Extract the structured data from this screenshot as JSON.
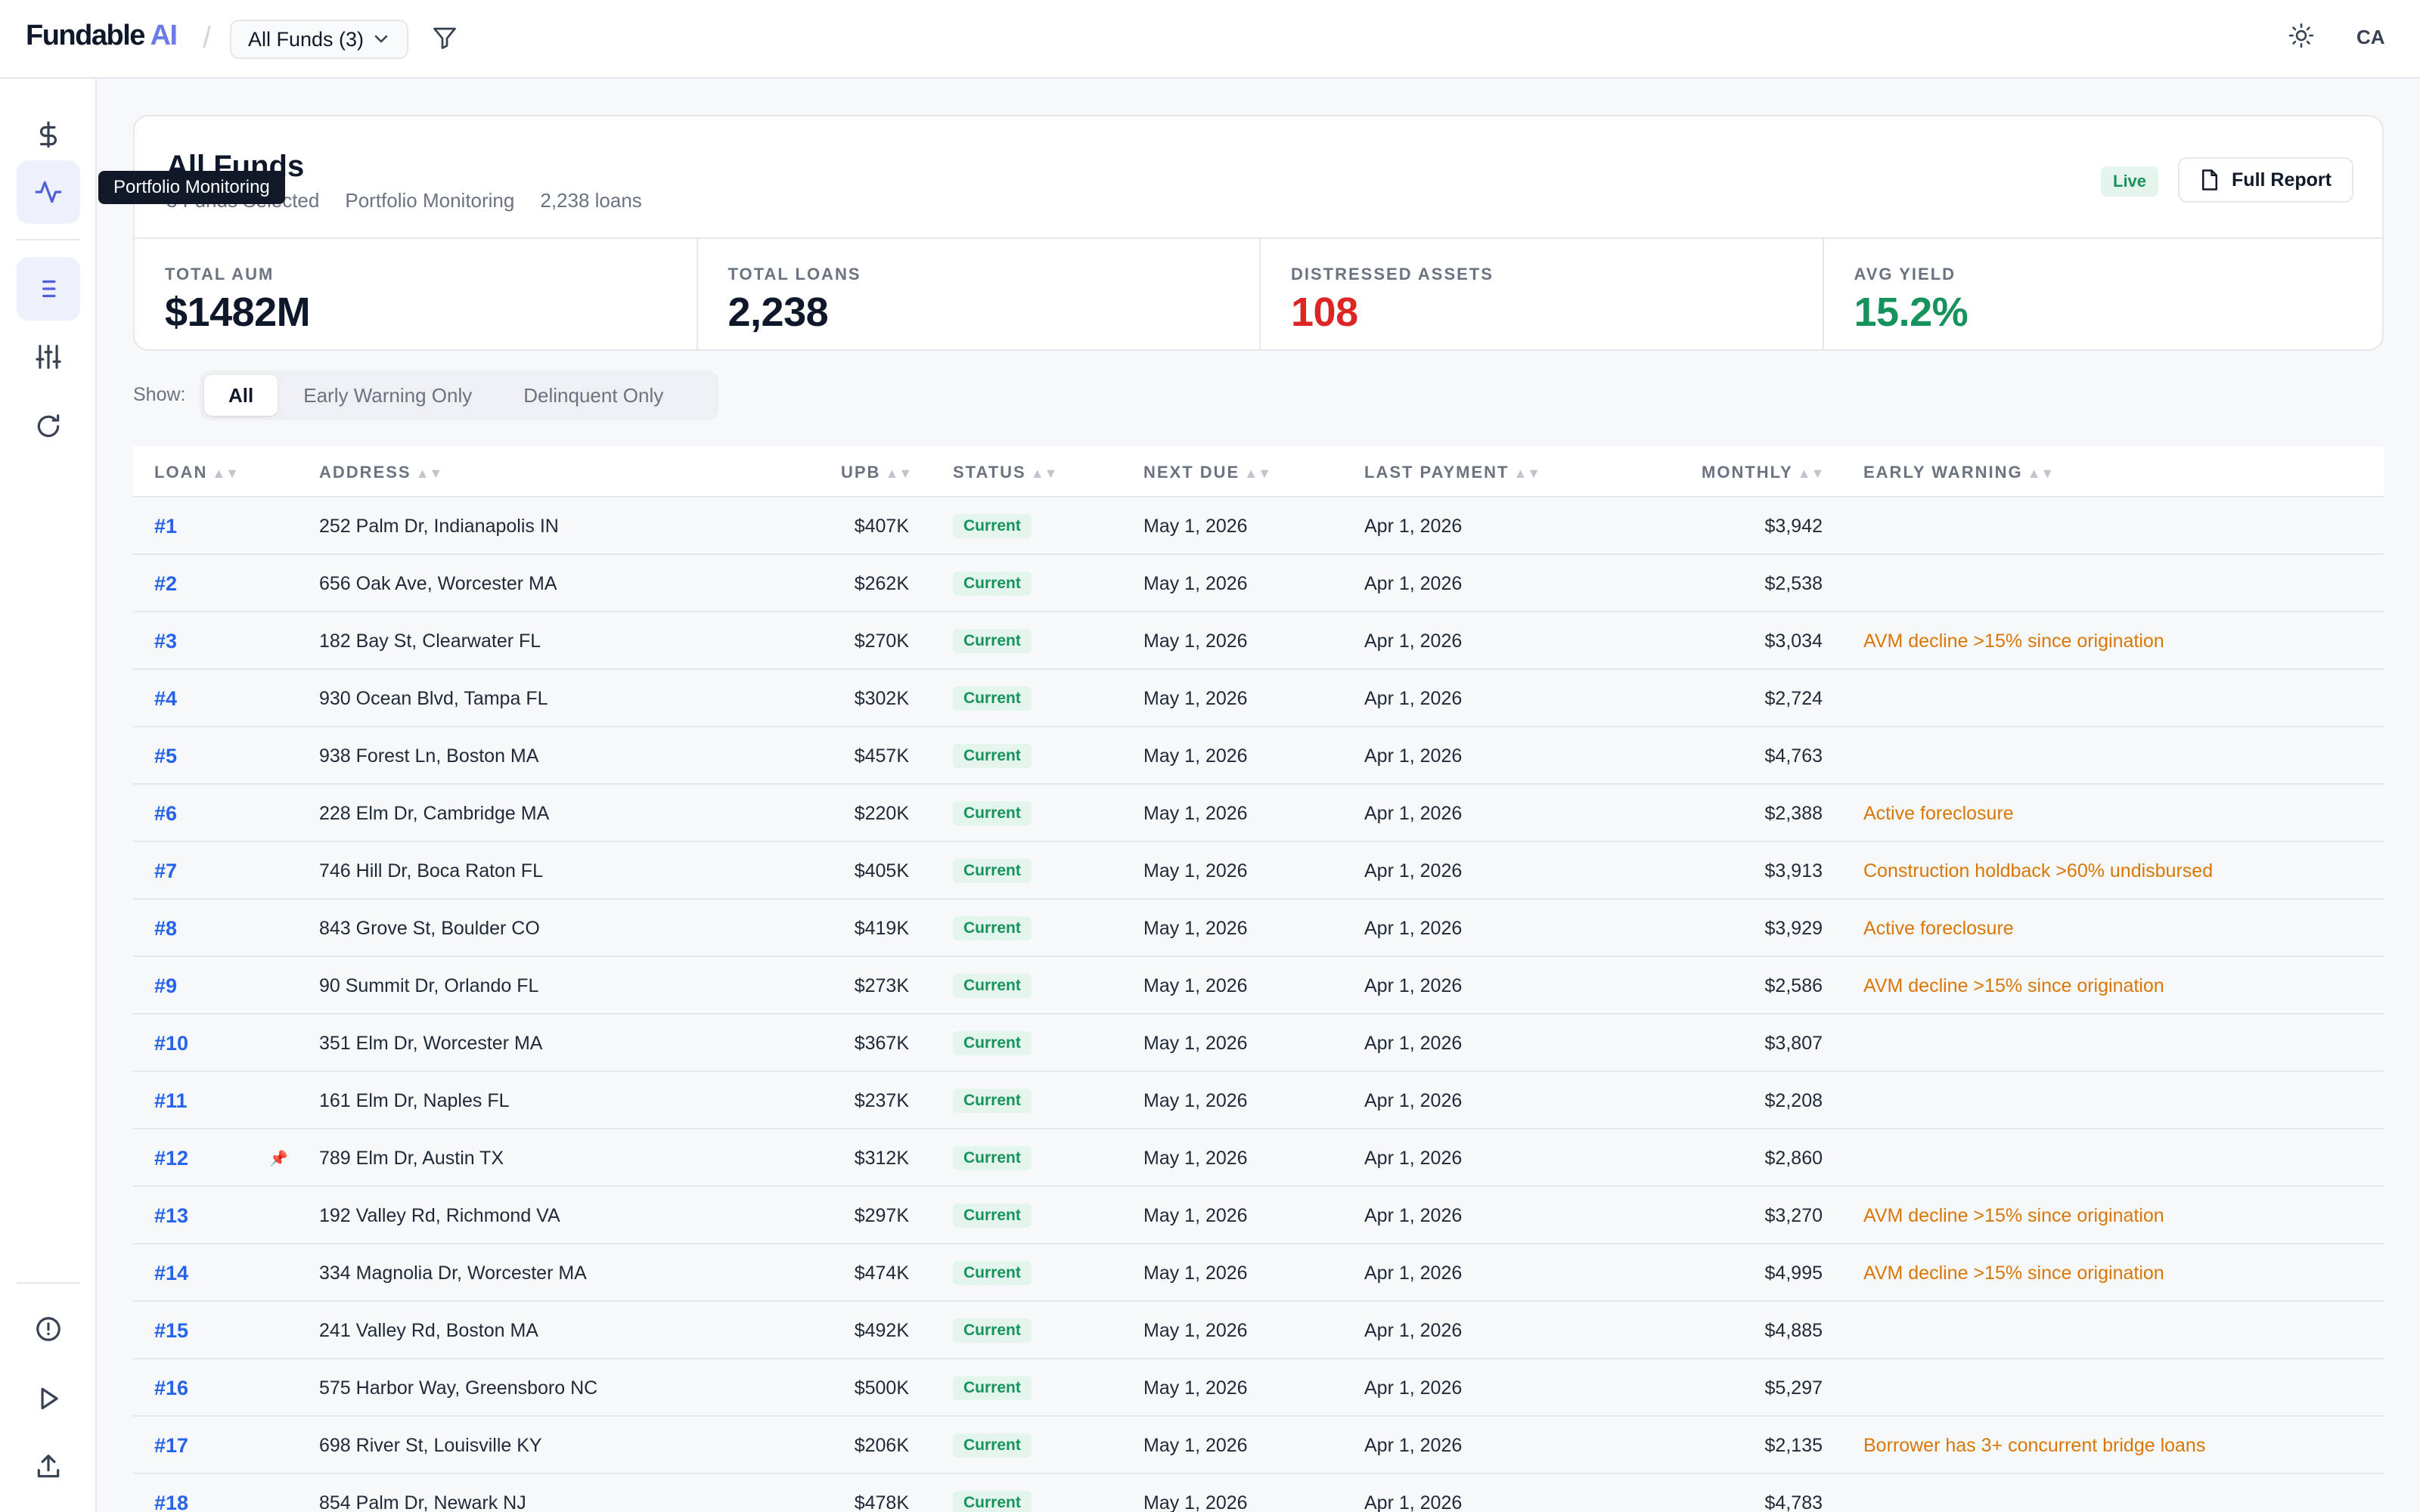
{
  "app": {
    "brand_main": "Fundable",
    "brand_ai": "AI",
    "brand_sep": "/"
  },
  "header": {
    "fund_select": "All Funds (3)",
    "user_initials": "CA"
  },
  "sidebar": {
    "tooltip": "Portfolio Monitoring"
  },
  "summary": {
    "title": "All Funds",
    "subtitle_items": [
      "3 Funds Selected",
      "Portfolio Monitoring",
      "2,238 loans"
    ],
    "live_badge": "Live",
    "report_button": "Full Report",
    "kpis": [
      {
        "label": "Total AUM",
        "value": "$1482M",
        "tone": "default"
      },
      {
        "label": "Total Loans",
        "value": "2,238",
        "tone": "default"
      },
      {
        "label": "Distressed Assets",
        "value": "108",
        "tone": "red"
      },
      {
        "label": "Avg Yield",
        "value": "15.2%",
        "tone": "green"
      }
    ]
  },
  "filters": {
    "show_label": "Show:",
    "options": [
      "All",
      "Early Warning Only",
      "Delinquent Only"
    ],
    "selected": "All"
  },
  "table": {
    "columns": [
      "Loan",
      "Address",
      "UPB",
      "Status",
      "Next Due",
      "Last Payment",
      "Monthly",
      "Early Warning"
    ],
    "sort_glyph": "▲▼",
    "pin_glyph": "📌",
    "rows": [
      {
        "loan": "#1",
        "pinned": false,
        "address": "252 Palm Dr, Indianapolis IN",
        "upb": "$407K",
        "status": "Current",
        "next_due": "May 1, 2026",
        "last_payment": "Apr 1, 2026",
        "monthly": "$3,942",
        "warning": ""
      },
      {
        "loan": "#2",
        "pinned": false,
        "address": "656 Oak Ave, Worcester MA",
        "upb": "$262K",
        "status": "Current",
        "next_due": "May 1, 2026",
        "last_payment": "Apr 1, 2026",
        "monthly": "$2,538",
        "warning": ""
      },
      {
        "loan": "#3",
        "pinned": false,
        "address": "182 Bay St, Clearwater FL",
        "upb": "$270K",
        "status": "Current",
        "next_due": "May 1, 2026",
        "last_payment": "Apr 1, 2026",
        "monthly": "$3,034",
        "warning": "AVM decline >15% since origination"
      },
      {
        "loan": "#4",
        "pinned": false,
        "address": "930 Ocean Blvd, Tampa FL",
        "upb": "$302K",
        "status": "Current",
        "next_due": "May 1, 2026",
        "last_payment": "Apr 1, 2026",
        "monthly": "$2,724",
        "warning": ""
      },
      {
        "loan": "#5",
        "pinned": false,
        "address": "938 Forest Ln, Boston MA",
        "upb": "$457K",
        "status": "Current",
        "next_due": "May 1, 2026",
        "last_payment": "Apr 1, 2026",
        "monthly": "$4,763",
        "warning": ""
      },
      {
        "loan": "#6",
        "pinned": false,
        "address": "228 Elm Dr, Cambridge MA",
        "upb": "$220K",
        "status": "Current",
        "next_due": "May 1, 2026",
        "last_payment": "Apr 1, 2026",
        "monthly": "$2,388",
        "warning": "Active foreclosure"
      },
      {
        "loan": "#7",
        "pinned": false,
        "address": "746 Hill Dr, Boca Raton FL",
        "upb": "$405K",
        "status": "Current",
        "next_due": "May 1, 2026",
        "last_payment": "Apr 1, 2026",
        "monthly": "$3,913",
        "warning": "Construction holdback >60% undisbursed"
      },
      {
        "loan": "#8",
        "pinned": false,
        "address": "843 Grove St, Boulder CO",
        "upb": "$419K",
        "status": "Current",
        "next_due": "May 1, 2026",
        "last_payment": "Apr 1, 2026",
        "monthly": "$3,929",
        "warning": "Active foreclosure"
      },
      {
        "loan": "#9",
        "pinned": false,
        "address": "90 Summit Dr, Orlando FL",
        "upb": "$273K",
        "status": "Current",
        "next_due": "May 1, 2026",
        "last_payment": "Apr 1, 2026",
        "monthly": "$2,586",
        "warning": "AVM decline >15% since origination"
      },
      {
        "loan": "#10",
        "pinned": false,
        "address": "351 Elm Dr, Worcester MA",
        "upb": "$367K",
        "status": "Current",
        "next_due": "May 1, 2026",
        "last_payment": "Apr 1, 2026",
        "monthly": "$3,807",
        "warning": ""
      },
      {
        "loan": "#11",
        "pinned": false,
        "address": "161 Elm Dr, Naples FL",
        "upb": "$237K",
        "status": "Current",
        "next_due": "May 1, 2026",
        "last_payment": "Apr 1, 2026",
        "monthly": "$2,208",
        "warning": ""
      },
      {
        "loan": "#12",
        "pinned": true,
        "address": "789 Elm Dr, Austin TX",
        "upb": "$312K",
        "status": "Current",
        "next_due": "May 1, 2026",
        "last_payment": "Apr 1, 2026",
        "monthly": "$2,860",
        "warning": ""
      },
      {
        "loan": "#13",
        "pinned": false,
        "address": "192 Valley Rd, Richmond VA",
        "upb": "$297K",
        "status": "Current",
        "next_due": "May 1, 2026",
        "last_payment": "Apr 1, 2026",
        "monthly": "$3,270",
        "warning": "AVM decline >15% since origination"
      },
      {
        "loan": "#14",
        "pinned": false,
        "address": "334 Magnolia Dr, Worcester MA",
        "upb": "$474K",
        "status": "Current",
        "next_due": "May 1, 2026",
        "last_payment": "Apr 1, 2026",
        "monthly": "$4,995",
        "warning": "AVM decline >15% since origination"
      },
      {
        "loan": "#15",
        "pinned": false,
        "address": "241 Valley Rd, Boston MA",
        "upb": "$492K",
        "status": "Current",
        "next_due": "May 1, 2026",
        "last_payment": "Apr 1, 2026",
        "monthly": "$4,885",
        "warning": ""
      },
      {
        "loan": "#16",
        "pinned": false,
        "address": "575 Harbor Way, Greensboro NC",
        "upb": "$500K",
        "status": "Current",
        "next_due": "May 1, 2026",
        "last_payment": "Apr 1, 2026",
        "monthly": "$5,297",
        "warning": ""
      },
      {
        "loan": "#17",
        "pinned": false,
        "address": "698 River St, Louisville KY",
        "upb": "$206K",
        "status": "Current",
        "next_due": "May 1, 2026",
        "last_payment": "Apr 1, 2026",
        "monthly": "$2,135",
        "warning": "Borrower has 3+ concurrent bridge loans"
      },
      {
        "loan": "#18",
        "pinned": false,
        "address": "854 Palm Dr, Newark NJ",
        "upb": "$478K",
        "status": "Current",
        "next_due": "May 1, 2026",
        "last_payment": "Apr 1, 2026",
        "monthly": "$4,783",
        "warning": ""
      }
    ]
  },
  "colors": {
    "accent": "#6b7be8",
    "link": "#2563eb",
    "danger": "#dc2626",
    "success": "#16935d",
    "warning": "#d97706"
  },
  "icons": {
    "sidebar": [
      "dollar-icon",
      "activity-icon",
      "list-icon",
      "sliders-icon",
      "refresh-icon",
      "alert-circle-icon",
      "play-icon",
      "upload-icon"
    ],
    "header": [
      "filter-icon",
      "sun-icon"
    ],
    "report": "file-icon"
  }
}
